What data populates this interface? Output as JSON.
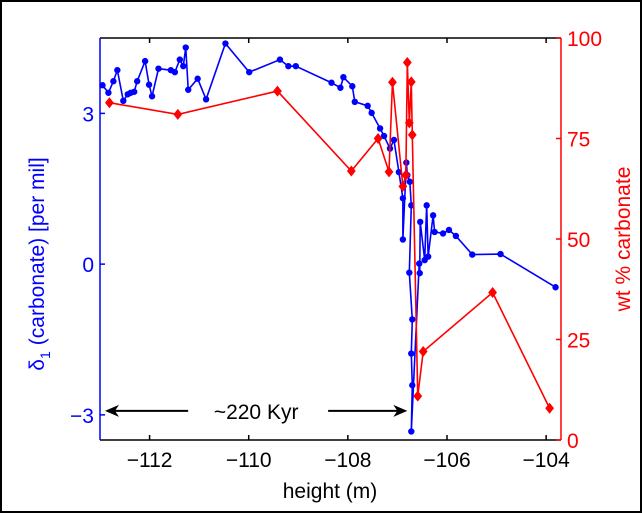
{
  "chart_data": {
    "type": "line",
    "title": "",
    "xlabel": "height (m)",
    "ylabel_left": "(carbonate) [per mil]",
    "ylabel_left_symbol": "δ",
    "ylabel_left_subscript": "1",
    "ylabel_right": "wt % carbonate",
    "xlim": [
      -113.0,
      -103.7
    ],
    "ylim_left": [
      -3.5,
      4.5
    ],
    "ylim_right": [
      0,
      100
    ],
    "x_ticks": [
      -112,
      -110,
      -108,
      -106,
      -104
    ],
    "x_tick_labels": [
      "−112",
      "−110",
      "−108",
      "−106",
      "−104"
    ],
    "y_left_ticks": [
      -3,
      0,
      3
    ],
    "y_left_tick_labels": [
      "−3",
      "0",
      "3"
    ],
    "y_right_ticks": [
      0,
      25,
      50,
      75,
      100
    ],
    "y_right_tick_labels": [
      "0",
      "25",
      "50",
      "75",
      "100"
    ],
    "grid": false,
    "colors": {
      "left": "#0000ff",
      "right": "#ff0000",
      "frame": "#000000"
    },
    "series": [
      {
        "name": "delta1 carbonate",
        "axis": "left",
        "color": "#0000ff",
        "marker": "circle",
        "x": [
          -112.95,
          -112.83,
          -112.73,
          -112.65,
          -112.53,
          -112.44,
          -112.38,
          -112.31,
          -112.25,
          -112.09,
          -112.01,
          -111.95,
          -111.82,
          -111.57,
          -111.49,
          -111.39,
          -111.32,
          -111.27,
          -111.22,
          -111.03,
          -110.86,
          -110.47,
          -109.99,
          -109.37,
          -109.2,
          -109.05,
          -108.33,
          -108.15,
          -108.09,
          -107.91,
          -107.86,
          -107.6,
          -107.52,
          -107.35,
          -107.27,
          -107.15,
          -107.07,
          -106.97,
          -106.89,
          -106.89,
          -106.82,
          -106.8,
          -106.75,
          -106.72,
          -106.76,
          -106.7,
          -106.72,
          -106.7,
          -106.72,
          -106.56,
          -106.55,
          -106.54,
          -106.45,
          -106.41,
          -106.38,
          -106.28,
          -106.25,
          -106.08,
          -105.96,
          -105.82,
          -105.49,
          -104.92,
          -103.81
        ],
        "y": [
          3.56,
          3.41,
          3.64,
          3.86,
          3.25,
          3.38,
          3.41,
          3.43,
          3.64,
          4.04,
          3.57,
          3.34,
          3.89,
          3.86,
          3.82,
          4.07,
          3.94,
          4.31,
          3.47,
          3.69,
          3.28,
          4.39,
          3.82,
          4.07,
          3.94,
          3.94,
          3.61,
          3.51,
          3.72,
          3.54,
          3.23,
          3.15,
          3.01,
          2.7,
          2.55,
          2.3,
          2.47,
          1.83,
          1.31,
          0.49,
          2.02,
          1.77,
          1.64,
          1.17,
          -0.17,
          -1.1,
          -1.78,
          -2.41,
          -3.33,
          0.01,
          -0.18,
          0.84,
          0.08,
          1.17,
          0.15,
          0.97,
          0.64,
          0.61,
          0.68,
          0.56,
          0.19,
          0.2,
          -0.46
        ]
      },
      {
        "name": "wt % carbonate",
        "axis": "right",
        "color": "#ff0000",
        "marker": "diamond",
        "x": [
          -112.81,
          -111.43,
          -109.42,
          -107.93,
          -107.39,
          -107.17,
          -107.1,
          -106.89,
          -106.83,
          -106.8,
          -106.76,
          -106.72,
          -106.7,
          -106.59,
          -106.48,
          -105.08,
          -103.93
        ],
        "y": [
          83.9,
          81.0,
          86.8,
          66.9,
          75.0,
          66.7,
          89.0,
          63.1,
          65.9,
          93.9,
          78.9,
          89.1,
          75.9,
          10.9,
          22.0,
          36.7,
          7.9
        ]
      }
    ],
    "annotations": [
      {
        "text": "~220 Kyr",
        "arrow": "double-headed",
        "x_from": -112.9,
        "x_to": -106.8,
        "y_left": -2.9
      }
    ]
  }
}
